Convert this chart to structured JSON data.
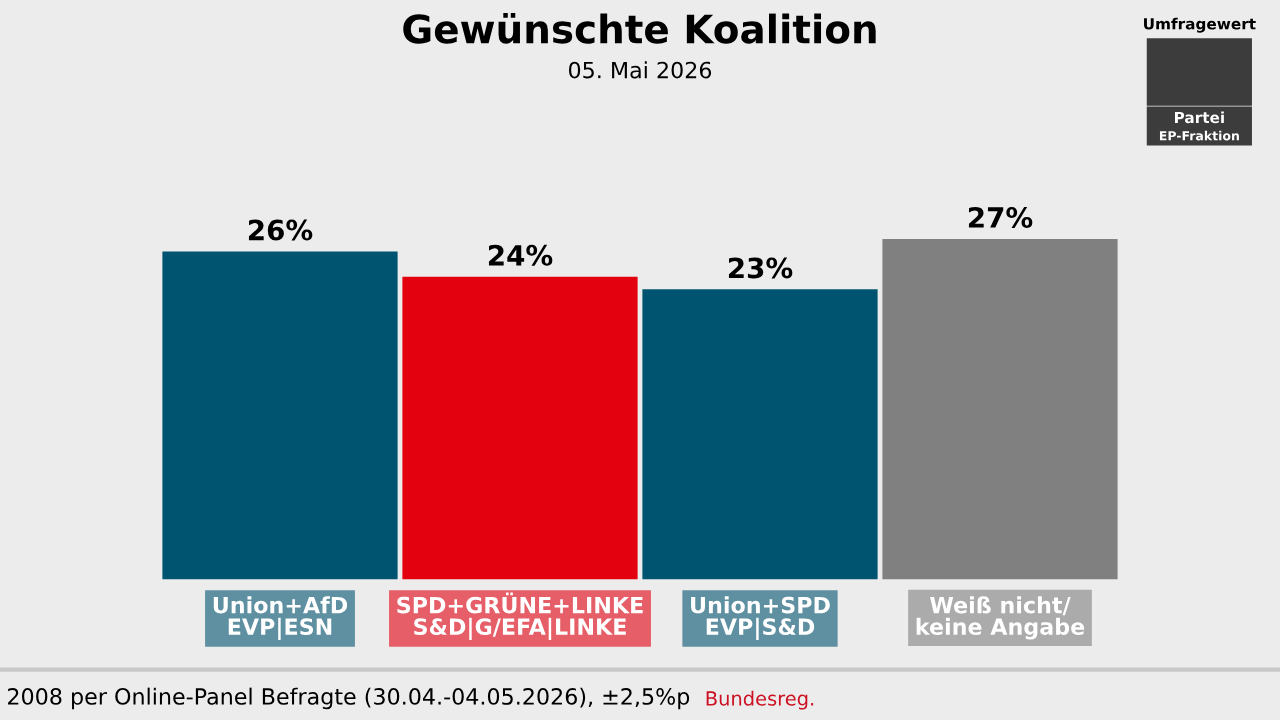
{
  "chart_data": {
    "type": "bar",
    "title": "Gewünschte Koalition",
    "subtitle": "05. Mai 2026",
    "categories": [
      "Union+AfD\nEVP|ESN",
      "SPD+GRÜNE+LINKE\nS&D|G/EFA|LINKE",
      "Union+SPD\nEVP|S&D",
      "Weiß nicht/\nkeine Angabe"
    ],
    "values": [
      26,
      24,
      23,
      27
    ],
    "value_labels": [
      "26%",
      "24%",
      "23%",
      "27%"
    ],
    "colors": [
      "#00546f",
      "#e3000f",
      "#00546f",
      "#808080"
    ],
    "annotations": [
      "Bundesreg.",
      "Umfragewert",
      "Partei",
      "EP-Fraktion",
      "2008 per Online-Panel Befragte (30.04.-04.05.2026), ±2,5%p"
    ],
    "grid": false,
    "legend": false
  }
}
